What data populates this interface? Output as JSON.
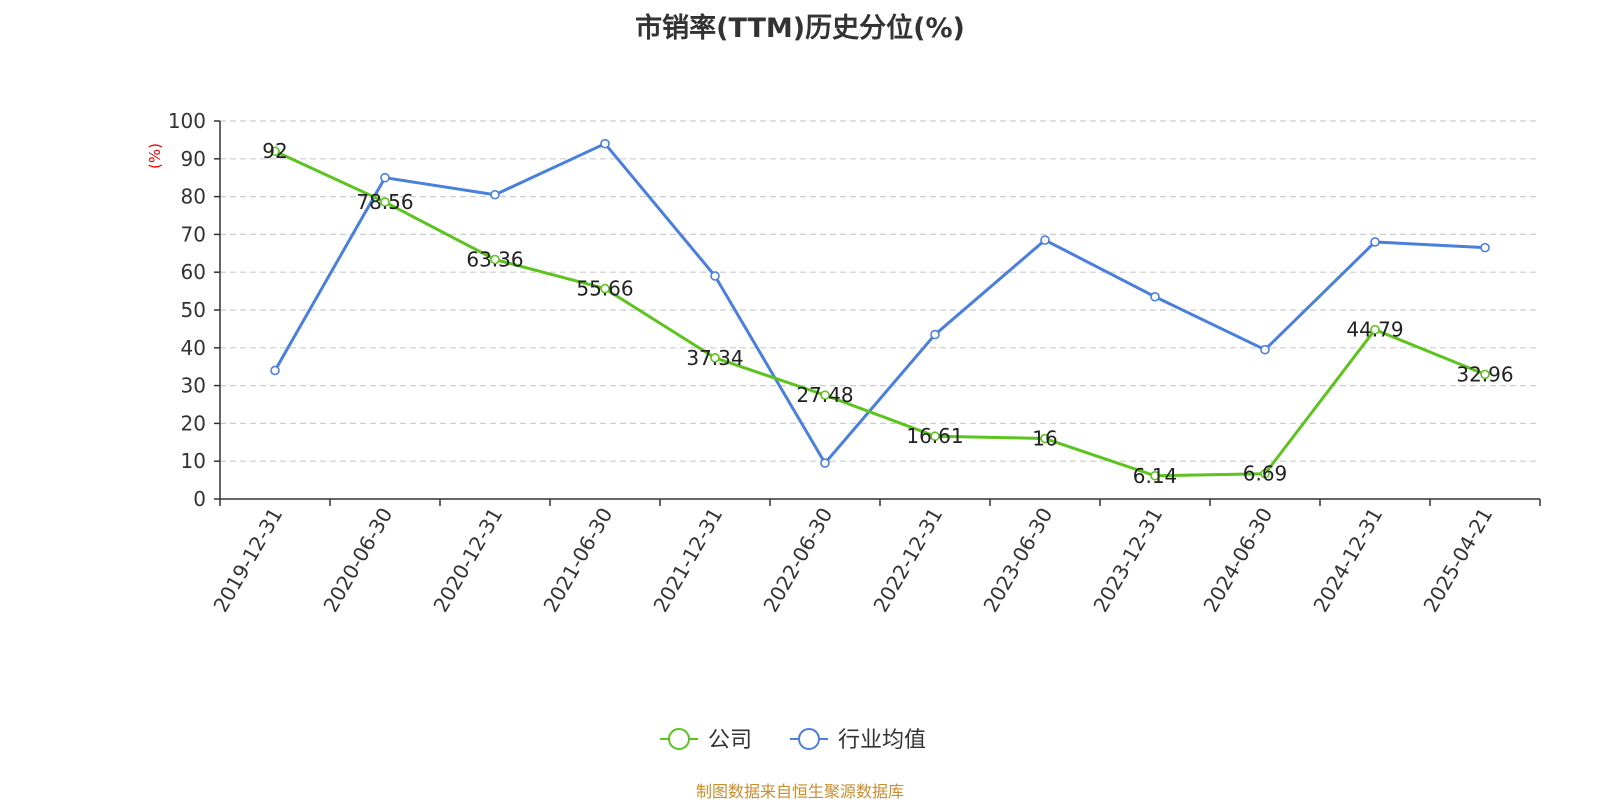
{
  "chart_data": {
    "type": "line",
    "title": "市销率(TTM)历史分位(%)",
    "ylabel": "(%)",
    "xlabel": "",
    "categories": [
      "2019-12-31",
      "2020-06-30",
      "2020-12-31",
      "2021-06-30",
      "2021-12-31",
      "2022-06-30",
      "2022-12-31",
      "2023-06-30",
      "2023-12-31",
      "2024-06-30",
      "2024-12-31",
      "2025-04-21"
    ],
    "ylim": [
      0,
      100
    ],
    "yticks": [
      0,
      10,
      20,
      30,
      40,
      50,
      60,
      70,
      80,
      90,
      100
    ],
    "grid": true,
    "legend_position": "bottom",
    "series": [
      {
        "name": "公司",
        "color": "#5cc31f",
        "values": [
          92,
          78.56,
          63.36,
          55.66,
          37.34,
          27.48,
          16.61,
          16,
          6.14,
          6.69,
          44.79,
          32.96
        ],
        "labels": [
          "92",
          "78.56",
          "63.36",
          "55.66",
          "37.34",
          "27.48",
          "16.61",
          "16",
          "6.14",
          "6.69",
          "44.79",
          "32.96"
        ]
      },
      {
        "name": "行业均值",
        "color": "#4a7fdc",
        "values": [
          34,
          85,
          80.5,
          94,
          59,
          9.5,
          43.5,
          68.5,
          53.5,
          39.5,
          68,
          66.5
        ]
      }
    ]
  },
  "source_note": "制图数据来自恒生聚源数据库"
}
